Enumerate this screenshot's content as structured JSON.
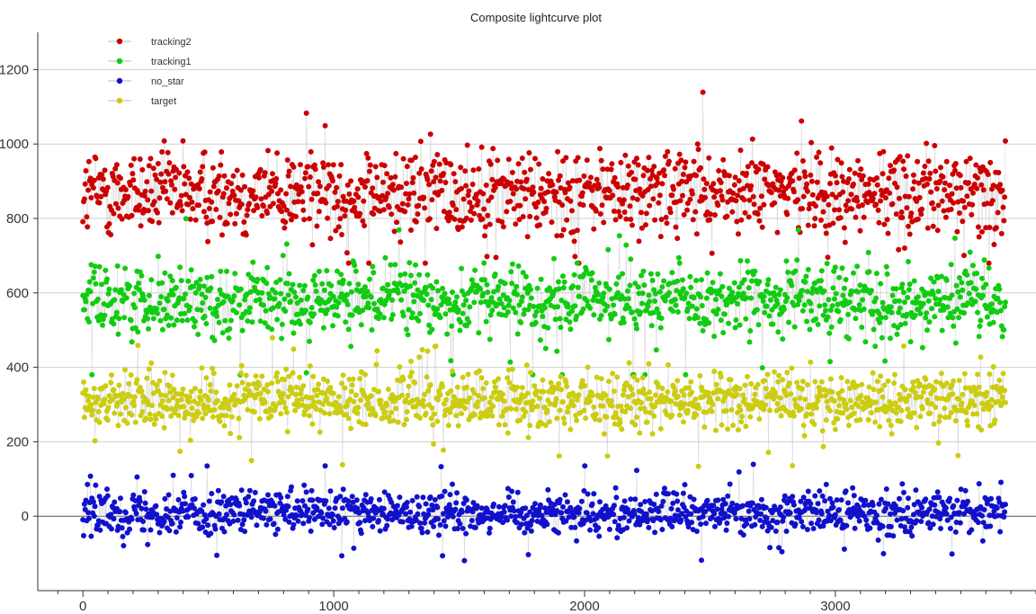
{
  "chart_data": {
    "type": "scatter",
    "title": "Composite lightcurve plot",
    "xlabel": "",
    "ylabel": "",
    "xlim": [
      -180,
      3800
    ],
    "ylim": [
      -200,
      1300
    ],
    "x_ticks": [
      0,
      1000,
      2000,
      3000
    ],
    "y_ticks": [
      0,
      200,
      400,
      600,
      800,
      1000,
      1200
    ],
    "grid": {
      "y": true,
      "x": false
    },
    "legend_position": "top-left",
    "connector_color": "#c8c8c8",
    "n_points": 3680,
    "series": [
      {
        "name": "tracking2",
        "color": "#cc0000",
        "mean": 870,
        "spread": 95,
        "min": 680,
        "max": 1240
      },
      {
        "name": "tracking1",
        "color": "#11cc11",
        "mean": 580,
        "spread": 75,
        "min": 380,
        "max": 840
      },
      {
        "name": "no_star",
        "color": "#1111cc",
        "mean": 10,
        "spread": 45,
        "min": -120,
        "max": 140
      },
      {
        "name": "target",
        "color": "#cccc11",
        "mean": 310,
        "spread": 60,
        "min": 120,
        "max": 480
      }
    ]
  }
}
